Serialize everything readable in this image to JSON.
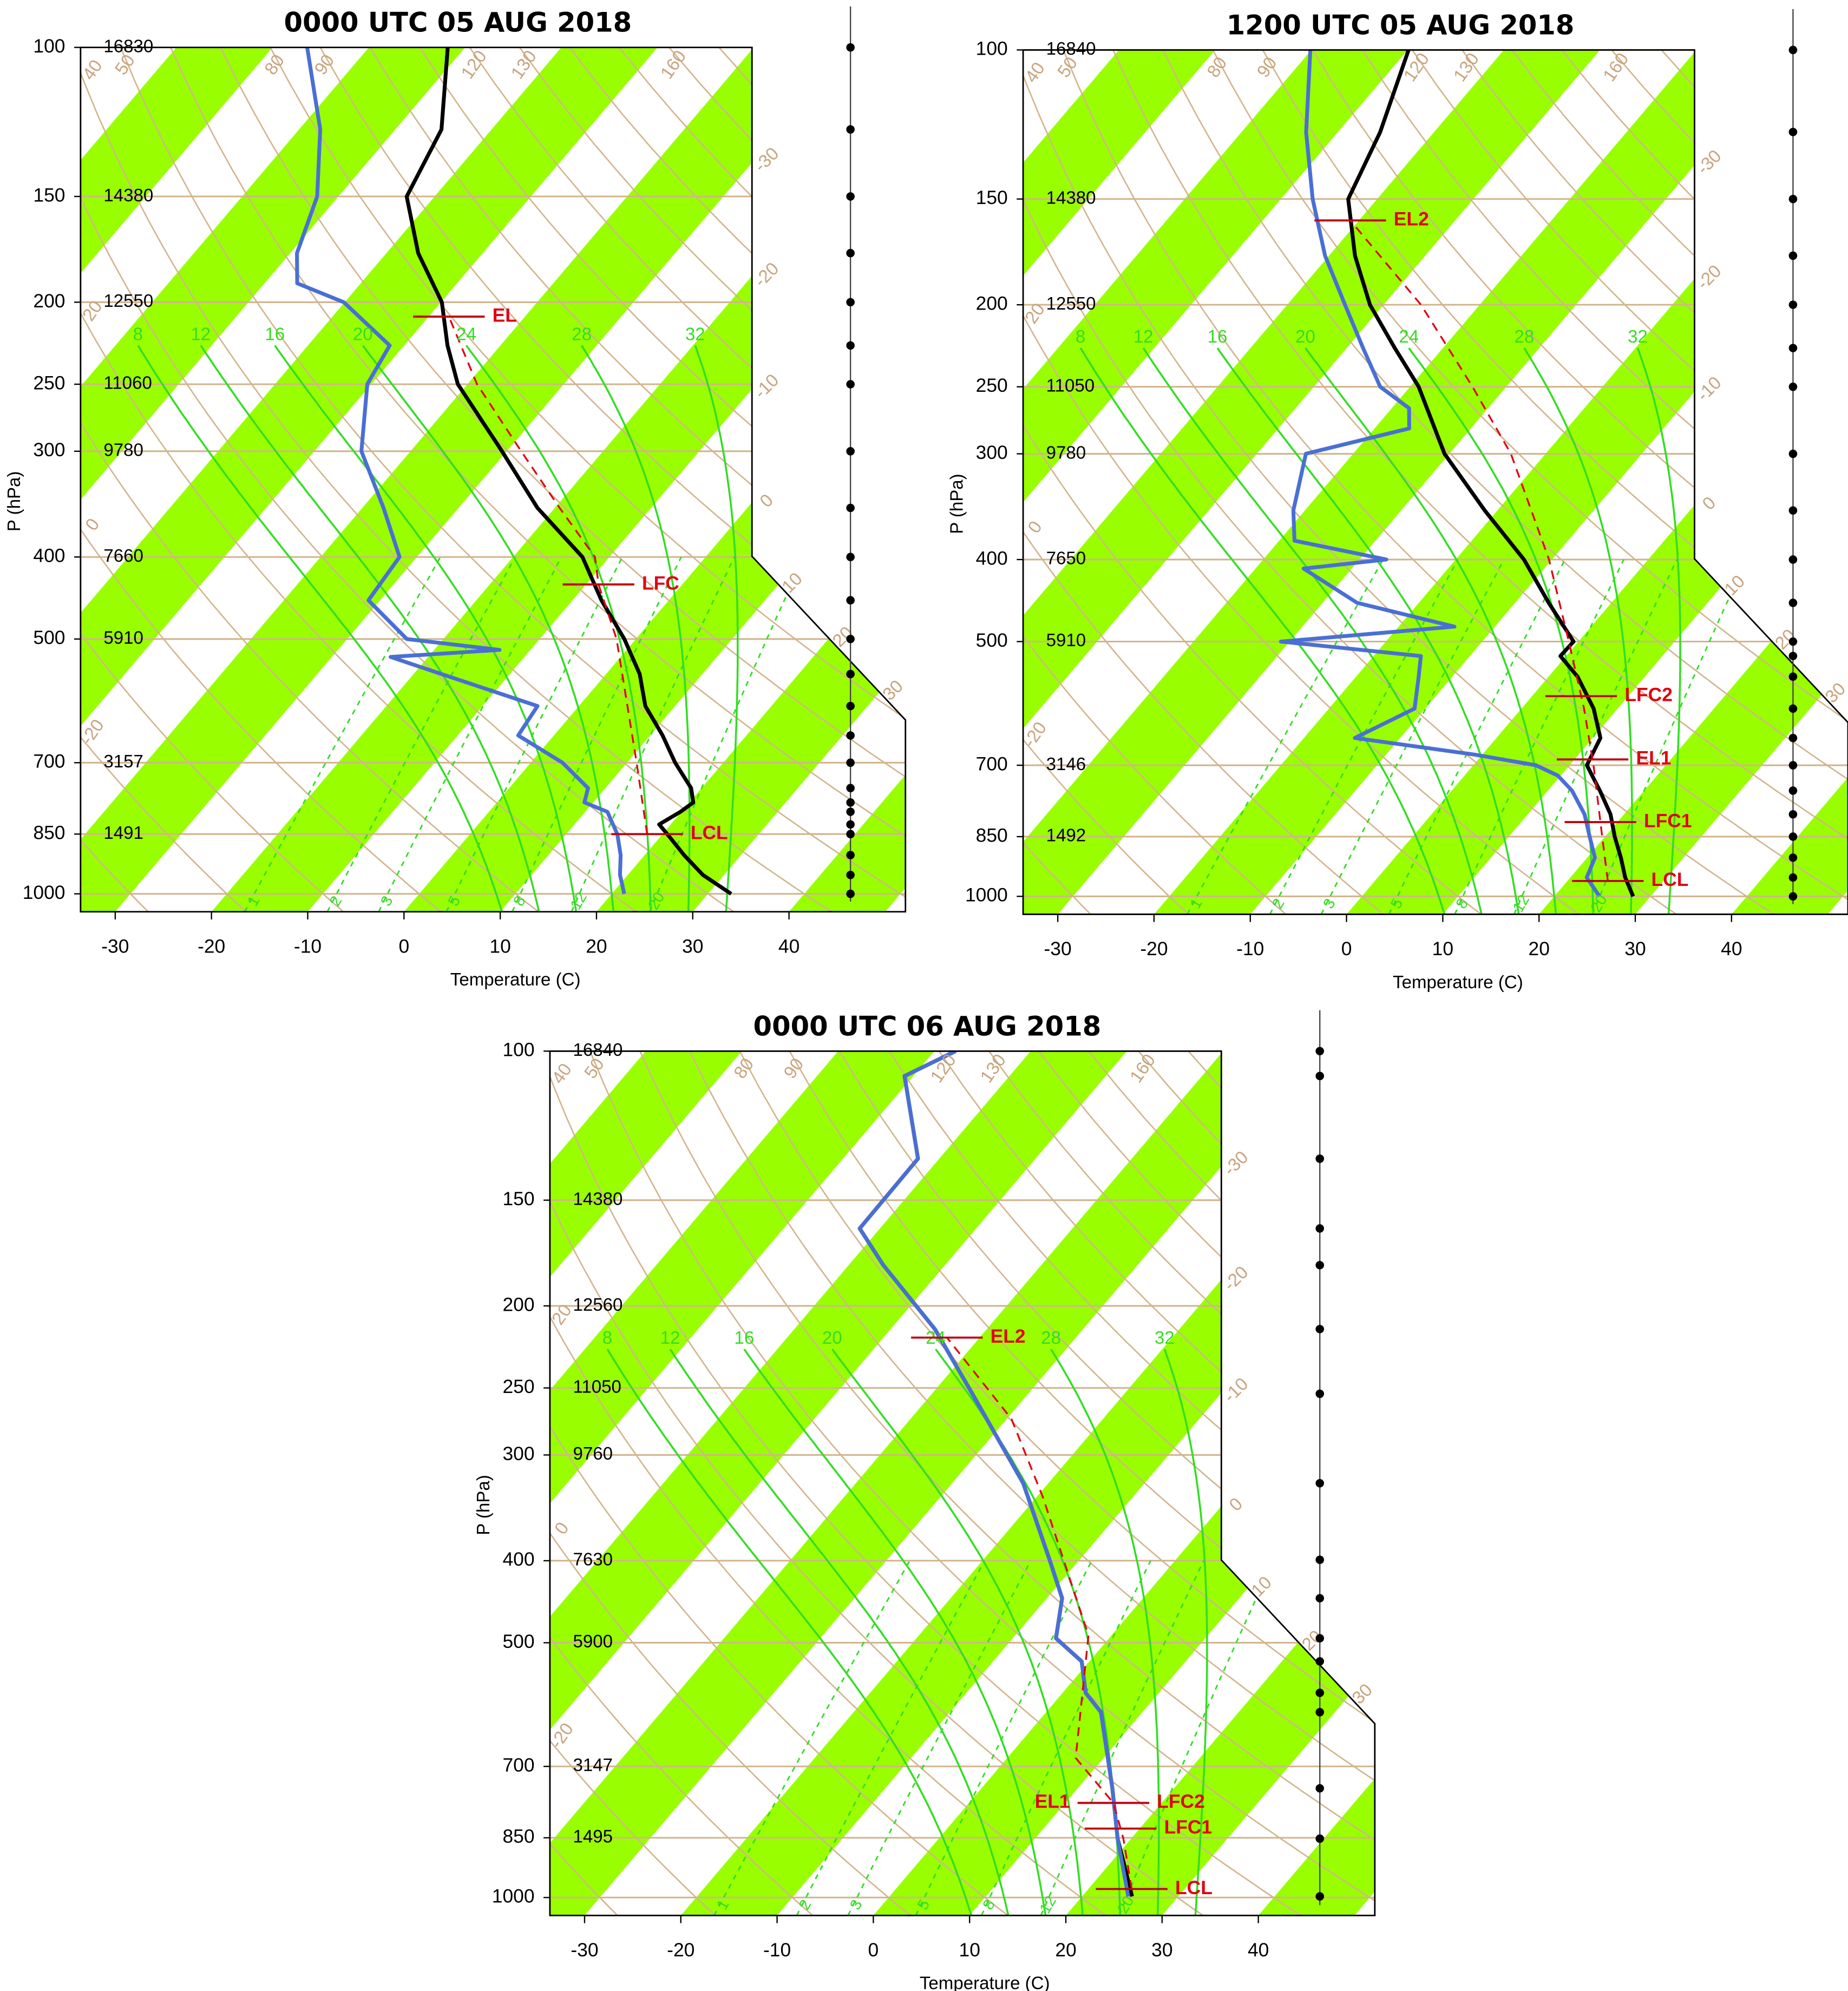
{
  "chart_data": [
    {
      "type": "skewt",
      "title": "0000 UTC 05 AUG 2018",
      "xlabel": "Temperature (C)",
      "ylabel": "P (hPa)",
      "xlim": [
        -33.6,
        52.1
      ],
      "ylim": [
        1050,
        100
      ],
      "ylog": true,
      "xticks": [
        -30,
        -20,
        -10,
        0,
        10,
        20,
        30,
        40
      ],
      "yticks": [
        100,
        150,
        200,
        250,
        300,
        400,
        500,
        700,
        850,
        1000
      ],
      "height_labels": [
        16830,
        14380,
        12550,
        11060,
        9780,
        7660,
        5910,
        3157,
        1491
      ],
      "isotherm_labels": [
        -30,
        -20,
        -10,
        0,
        10,
        20,
        30
      ],
      "dry_adiabat_labels": [
        -20,
        0,
        20,
        40,
        50,
        80,
        90,
        120,
        130,
        160
      ],
      "moist_adiabat_labels": [
        8,
        12,
        16,
        20,
        24,
        28,
        32
      ],
      "mixing_ratio_labels": [
        1,
        2,
        3,
        5,
        8,
        12,
        20
      ],
      "series": [
        {
          "color": "#000000",
          "pressure": [
            100,
            125,
            150,
            175,
            200,
            225,
            250,
            300,
            350,
            400,
            450,
            500,
            550,
            600,
            650,
            700,
            750,
            780,
            800,
            828,
            850,
            900,
            950,
            1000
          ],
          "values": [
            -71.8,
            -65.2,
            -62.9,
            -56.7,
            -49.9,
            -45.5,
            -41,
            -30.5,
            -21.8,
            -12.8,
            -7,
            -1.2,
            3.5,
            6.9,
            11.3,
            15,
            18.9,
            20.4,
            19.9,
            18.8,
            20.5,
            24.1,
            27.8,
            32.4
          ]
        },
        {
          "color": "#4a6fd4",
          "pressure": [
            100,
            125,
            150,
            175,
            190,
            200,
            225,
            250,
            300,
            350,
            400,
            450,
            500,
            515,
            525,
            550,
            600,
            650,
            700,
            750,
            780,
            800,
            850,
            900,
            950,
            1000
          ],
          "values": [
            -86.4,
            -77.8,
            -72.2,
            -69.3,
            -66.6,
            -60.1,
            -51.5,
            -50.4,
            -45.1,
            -37.8,
            -31.8,
            -31.2,
            -23.8,
            -13.2,
            -23.9,
            -17.1,
            -4.3,
            -3.7,
            3.3,
            8.2,
            9.1,
            12.3,
            15.3,
            17.5,
            19.2,
            21.3
          ]
        },
        {
          "color": "#e00010",
          "dash": true,
          "pressure": [
            850,
            700,
            500,
            431,
            400,
            350,
            300,
            250,
            208
          ],
          "values": [
            18.4,
            11,
            -2,
            -8.7,
            -11.5,
            -19.5,
            -28.5,
            -39,
            -47.9
          ]
        }
      ],
      "annotations": [
        {
          "label": "EL",
          "pressure": 208
        },
        {
          "label": "LFC",
          "pressure": 431
        },
        {
          "label": "LCL",
          "pressure": 850
        }
      ]
    },
    {
      "type": "skewt",
      "title": "1200 UTC 05 AUG 2018",
      "xlabel": "Temperature (C)",
      "ylabel": "P (hPa)",
      "xlim": [
        -33.6,
        52.1
      ],
      "ylim": [
        1050,
        100
      ],
      "ylog": true,
      "xticks": [
        -30,
        -20,
        -10,
        0,
        10,
        20,
        30,
        40
      ],
      "yticks": [
        100,
        150,
        200,
        250,
        300,
        400,
        500,
        700,
        850,
        1000
      ],
      "height_labels": [
        16840,
        14380,
        12550,
        11050,
        9780,
        7650,
        5910,
        3146,
        1492
      ],
      "isotherm_labels": [
        -30,
        -20,
        -10,
        0,
        10,
        20,
        30
      ],
      "dry_adiabat_labels": [
        -20,
        0,
        20,
        40,
        50,
        80,
        90,
        120,
        130,
        160
      ],
      "moist_adiabat_labels": [
        8,
        12,
        16,
        20,
        24,
        28,
        32
      ],
      "mixing_ratio_labels": [
        1,
        2,
        3,
        5,
        8,
        12,
        20
      ],
      "series": [
        {
          "color": "#000000",
          "pressure": [
            100,
            125,
            150,
            175,
            200,
            225,
            250,
            300,
            350,
            400,
            450,
            500,
            520,
            550,
            600,
            650,
            700,
            750,
            800,
            850,
            900,
            950,
            1000
          ],
          "values": [
            -69.9,
            -65.6,
            -63,
            -57.3,
            -51.4,
            -45,
            -39.1,
            -30.5,
            -21.3,
            -12.9,
            -6.5,
            -0.5,
            -0.6,
            3,
            7.5,
            10.8,
            11.8,
            15.4,
            18.6,
            21,
            23.5,
            25.7,
            28.2
          ]
        },
        {
          "color": "#4a6fd4",
          "pressure": [
            100,
            125,
            150,
            175,
            200,
            225,
            250,
            265,
            280,
            300,
            350,
            380,
            400,
            410,
            450,
            480,
            500,
            520,
            550,
            600,
            650,
            680,
            700,
            720,
            750,
            800,
            850,
            900,
            950,
            1000
          ],
          "values": [
            -80.1,
            -73.3,
            -66.7,
            -60.4,
            -54,
            -48.3,
            -43.1,
            -38.2,
            -36.4,
            -44.9,
            -41.2,
            -38.4,
            -27.2,
            -35,
            -26.4,
            -14.2,
            -30.9,
            -15.1,
            -13.5,
            -11.1,
            -14.7,
            -0.8,
            6.5,
            9.7,
            12.5,
            15.9,
            18.4,
            20.8,
            21.7,
            24.7
          ]
        },
        {
          "color": "#e00010",
          "dash": true,
          "pressure": [
            959,
            850,
            700,
            600,
            500,
            400,
            300,
            250,
            200,
            159
          ],
          "values": [
            24.2,
            19.7,
            12.5,
            6.5,
            -1,
            -10.3,
            -23.6,
            -33.5,
            -46.1,
            -60.9
          ]
        }
      ],
      "annotations": [
        {
          "label": "EL2",
          "pressure": 159
        },
        {
          "label": "LFC2",
          "pressure": 580
        },
        {
          "label": "EL1",
          "pressure": 689
        },
        {
          "label": "LFC1",
          "pressure": 817
        },
        {
          "label": "LCL",
          "pressure": 959
        }
      ]
    },
    {
      "type": "skewt",
      "title": "0000 UTC 06 AUG 2018",
      "xlabel": "Temperature (C)",
      "ylabel": "P (hPa)",
      "xlim": [
        -33.6,
        52.1
      ],
      "ylim": [
        1050,
        100
      ],
      "ylog": true,
      "xticks": [
        -30,
        -20,
        -10,
        0,
        10,
        20,
        30,
        40
      ],
      "yticks": [
        100,
        150,
        200,
        250,
        300,
        400,
        500,
        700,
        850,
        1000
      ],
      "height_labels": [
        16840,
        14380,
        12560,
        11050,
        9760,
        7630,
        5900,
        3147,
        1495
      ],
      "isotherm_labels": [
        -30,
        -20,
        -10,
        0,
        10,
        20,
        30
      ],
      "dry_adiabat_labels": [
        -20,
        0,
        20,
        40,
        50,
        80,
        90,
        120,
        130,
        160
      ],
      "moist_adiabat_labels": [
        8,
        12,
        16,
        20,
        24,
        28,
        32
      ],
      "mixing_ratio_labels": [
        1,
        2,
        3,
        5,
        8,
        12,
        20
      ],
      "series": [
        {
          "color": "#000000",
          "pressure": [
            100,
            107,
            134,
            162,
            179,
            213,
            254,
            324,
            399,
            443,
            494,
            526,
            573,
            604,
            743,
            852,
            997
          ],
          "values": [
            -67.8,
            -70.9,
            -62.2,
            -62.1,
            -56.4,
            -45.4,
            -35.8,
            -22.6,
            -13.1,
            -8.4,
            -5.5,
            -0.8,
            2.4,
            5.7,
            13.6,
            18.6,
            25.2
          ]
        },
        {
          "color": "#4a6fd4",
          "pressure": [
            100,
            107,
            134,
            162,
            179,
            213,
            254,
            324,
            399,
            443,
            494,
            526,
            573,
            604,
            743,
            852,
            997
          ],
          "values": [
            -67.8,
            -70.9,
            -62.2,
            -62.1,
            -56.4,
            -45.4,
            -35.8,
            -22.6,
            -13.1,
            -8.4,
            -5.5,
            -0.8,
            2.4,
            5.7,
            13.6,
            18.6,
            24.8
          ]
        },
        {
          "color": "#e00010",
          "dash": true,
          "pressure": [
            977,
            852,
            773,
            684,
            490,
            336,
            272,
            218
          ],
          "values": [
            24.5,
            19.2,
            15,
            7.1,
            -2.4,
            -19.4,
            -29.5,
            -43.4
          ]
        }
      ],
      "annotations": [
        {
          "label": "EL2",
          "pressure": 218
        },
        {
          "label": "LFC2",
          "pressure": 773
        },
        {
          "label": "EL1",
          "pressure": 773
        },
        {
          "label": "LFC1",
          "pressure": 829
        },
        {
          "label": "LCL",
          "pressure": 977
        }
      ]
    }
  ]
}
